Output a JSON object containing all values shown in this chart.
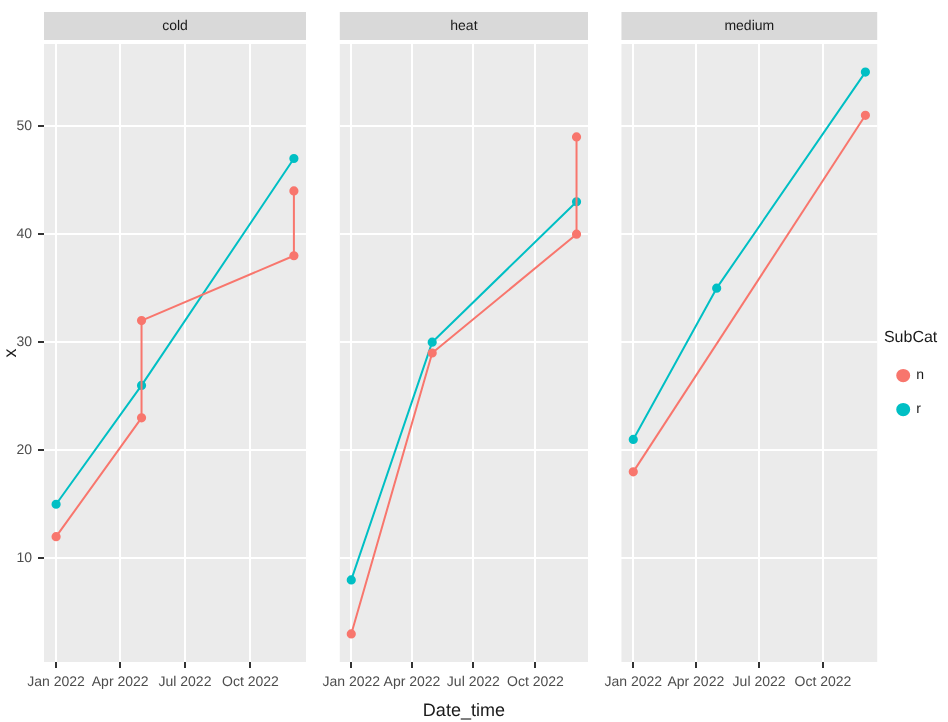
{
  "chart_data": [
    {
      "type": "line",
      "title": "cold",
      "ylabel": "x",
      "marker": "circle",
      "line_style": "solid",
      "grid": true,
      "legend": false,
      "xlim": [
        "2021-12-15",
        "2022-12-18"
      ],
      "ylim": [
        0.4,
        57.6
      ],
      "xticks": [
        {
          "value": "2022-01-01",
          "label": "Jan 2022"
        },
        {
          "value": "2022-04-01",
          "label": "Apr 2022"
        },
        {
          "value": "2022-07-01",
          "label": "Jul 2022"
        },
        {
          "value": "2022-10-01",
          "label": "Oct 2022"
        }
      ],
      "yticks": [
        10,
        20,
        30,
        40,
        50
      ],
      "series": [
        {
          "color": "#f8766d",
          "x": [
            "2022-01-01",
            "2022-05-01",
            "2022-05-01",
            "2022-12-01",
            "2022-12-01"
          ],
          "values": [
            12,
            23,
            32,
            38,
            44
          ]
        },
        {
          "color": "#00bfc4",
          "x": [
            "2022-01-01",
            "2022-05-01",
            "2022-12-01"
          ],
          "values": [
            15,
            26,
            47
          ]
        }
      ]
    },
    {
      "type": "line",
      "title": "heat",
      "xlabel": "Date_time",
      "marker": "circle",
      "line_style": "solid",
      "grid": true,
      "legend": false,
      "tick_labels": "x",
      "xlim": [
        "2021-12-15",
        "2022-12-18"
      ],
      "ylim": [
        0.4,
        57.6
      ],
      "xticks": [
        {
          "value": "2022-01-01",
          "label": "Jan 2022"
        },
        {
          "value": "2022-04-01",
          "label": "Apr 2022"
        },
        {
          "value": "2022-07-01",
          "label": "Jul 2022"
        },
        {
          "value": "2022-10-01",
          "label": "Oct 2022"
        }
      ],
      "yticks": [
        10,
        20,
        30,
        40,
        50
      ],
      "series": [
        {
          "color": "#f8766d",
          "x": [
            "2022-01-01",
            "2022-05-01",
            "2022-12-01",
            "2022-12-01"
          ],
          "values": [
            3,
            29,
            40,
            49
          ]
        },
        {
          "color": "#00bfc4",
          "x": [
            "2022-01-01",
            "2022-05-01",
            "2022-12-01"
          ],
          "values": [
            8,
            30,
            43
          ]
        }
      ]
    },
    {
      "type": "line",
      "title": "medium",
      "legend_title": "SubCat",
      "marker": "circle",
      "line_style": "solid",
      "grid": true,
      "legend": "right",
      "tick_labels": "x",
      "xlim": [
        "2021-12-15",
        "2022-12-18"
      ],
      "ylim": [
        0.4,
        57.6
      ],
      "xticks": [
        {
          "value": "2022-01-01",
          "label": "Jan 2022"
        },
        {
          "value": "2022-04-01",
          "label": "Apr 2022"
        },
        {
          "value": "2022-07-01",
          "label": "Jul 2022"
        },
        {
          "value": "2022-10-01",
          "label": "Oct 2022"
        }
      ],
      "yticks": [
        10,
        20,
        30,
        40,
        50
      ],
      "series": [
        {
          "name": "n",
          "color": "#f8766d",
          "x": [
            "2022-01-01",
            "2022-12-01"
          ],
          "values": [
            18,
            51
          ]
        },
        {
          "name": "r",
          "color": "#00bfc4",
          "x": [
            "2022-01-01",
            "2022-05-01",
            "2022-12-01"
          ],
          "values": [
            21,
            35,
            55
          ]
        }
      ]
    }
  ]
}
